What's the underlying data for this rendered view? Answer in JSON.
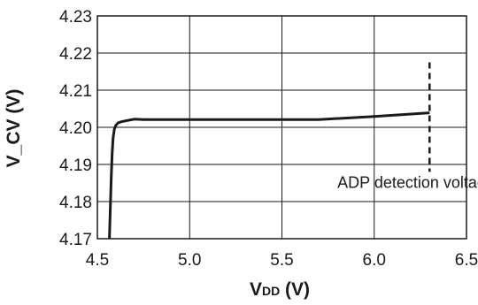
{
  "chart_data": {
    "type": "line",
    "xlabel_main": "V",
    "xlabel_sub": "DD",
    "xlabel_unit": " (V)",
    "ylabel": "V_CV (V)",
    "xlim": [
      4.5,
      6.5
    ],
    "ylim": [
      4.17,
      4.23
    ],
    "xticks": [
      4.5,
      5.0,
      5.5,
      6.0,
      6.5
    ],
    "xtick_labels": [
      "4.5",
      "5.0",
      "5.5",
      "6.0",
      "6.5"
    ],
    "yticks": [
      4.17,
      4.18,
      4.19,
      4.2,
      4.21,
      4.22,
      4.23
    ],
    "ytick_labels": [
      "4.17",
      "4.18",
      "4.19",
      "4.20",
      "4.21",
      "4.22",
      "4.23"
    ],
    "grid": true,
    "series": [
      {
        "x": [
          4.565,
          4.57,
          4.575,
          4.58,
          4.585,
          4.592,
          4.6,
          4.612,
          4.63,
          4.66,
          4.7,
          4.75,
          5.0,
          5.5,
          5.7,
          6.0,
          6.3
        ],
        "y": [
          4.17,
          4.178,
          4.186,
          4.193,
          4.197,
          4.1995,
          4.2005,
          4.2012,
          4.2015,
          4.2018,
          4.2022,
          4.2021,
          4.2021,
          4.2021,
          4.2021,
          4.2029,
          4.2039
        ],
        "style": "solid"
      }
    ],
    "annotations": [
      {
        "text": "ADP detection voltage H",
        "marker_x": 6.3,
        "marker_y_range": [
          4.188,
          4.2175
        ],
        "marker_style": "dashed",
        "text_x": 6.27,
        "text_y": 4.1837
      }
    ]
  }
}
